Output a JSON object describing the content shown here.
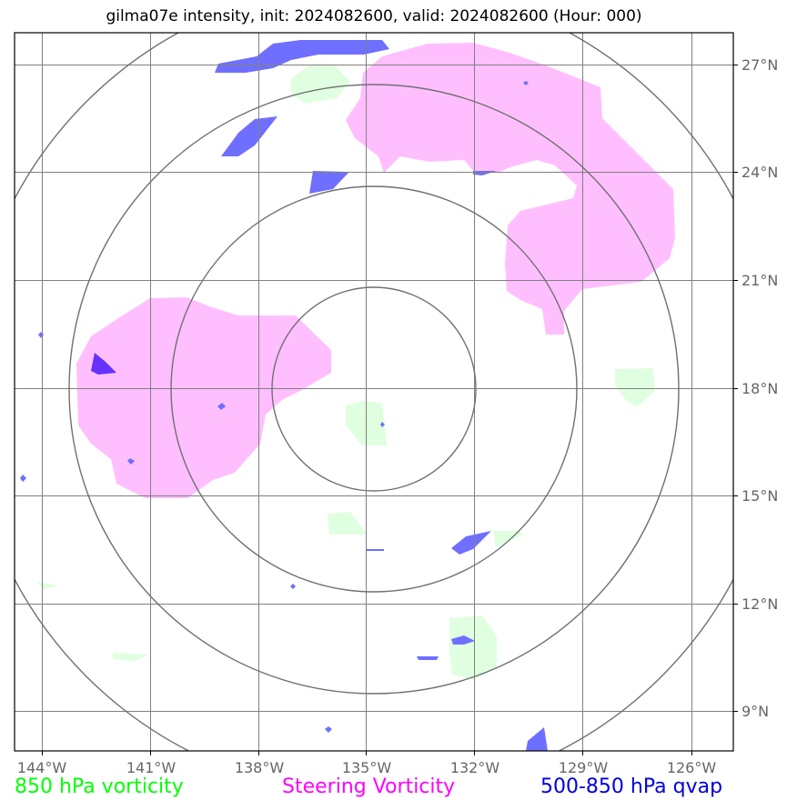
{
  "title": "gilma07e intensity, init: 2024082600, valid: 2024082600 (Hour: 000)",
  "longitude_ticks": [
    "144°W",
    "141°W",
    "138°W",
    "135°W",
    "132°W",
    "129°W",
    "126°W"
  ],
  "latitude_ticks": [
    "27°N",
    "24°N",
    "21°N",
    "18°N",
    "15°N",
    "12°N",
    "9°N"
  ],
  "legend": {
    "vort850": "850 hPa vorticity",
    "steering": "Steering Vorticity",
    "qvap": "500-850 hPa qvap"
  },
  "colors": {
    "vort850": "#00ff00",
    "steering": "#ff00ff",
    "qvap": "#0000dd"
  }
}
